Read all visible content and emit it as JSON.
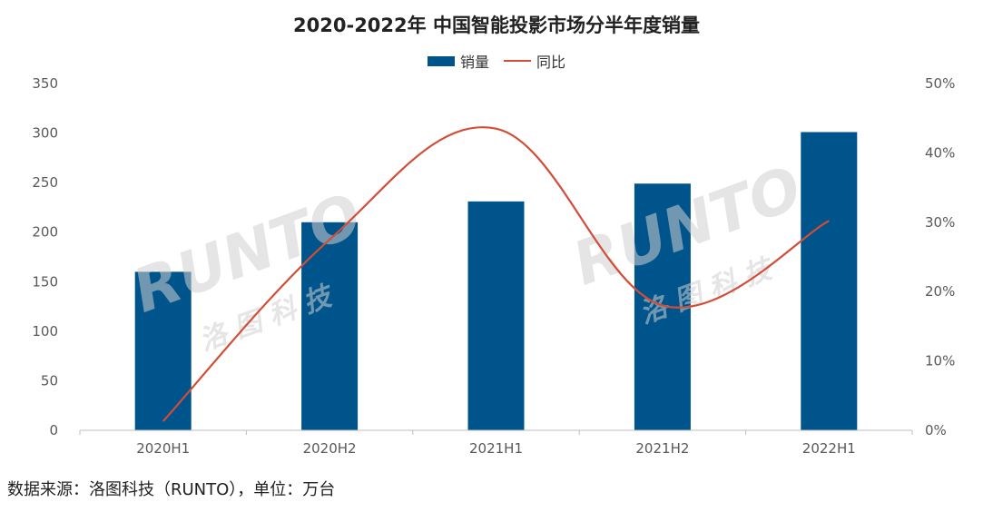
{
  "chart_data": {
    "type": "bar",
    "title": "2020-2022年 中国智能投影市场分半年度销量",
    "categories": [
      "2020H1",
      "2020H2",
      "2021H1",
      "2021H2",
      "2022H1"
    ],
    "series": [
      {
        "name": "销量",
        "type": "bar",
        "axis": "left",
        "values": [
          160,
          210,
          231,
          249,
          301
        ]
      },
      {
        "name": "同比",
        "type": "line",
        "axis": "right",
        "values": [
          0.013,
          0.275,
          0.435,
          0.18,
          0.302
        ]
      }
    ],
    "y_left": {
      "ylim": [
        0,
        350
      ],
      "ticks": [
        "0",
        "50",
        "100",
        "150",
        "200",
        "250",
        "300",
        "350"
      ]
    },
    "y_right": {
      "ylim": [
        0,
        0.5
      ],
      "ticks": [
        "0%",
        "10%",
        "20%",
        "30%",
        "40%",
        "50%"
      ]
    },
    "grid": false,
    "legend_position": "top-center",
    "colors": {
      "bar": "#00548C",
      "line": "#D24D36"
    }
  },
  "watermark": {
    "text": "RUNTO",
    "subtext": "洛 图 科 技"
  },
  "source_note": "数据来源：洛图科技（RUNTO），单位：万台"
}
